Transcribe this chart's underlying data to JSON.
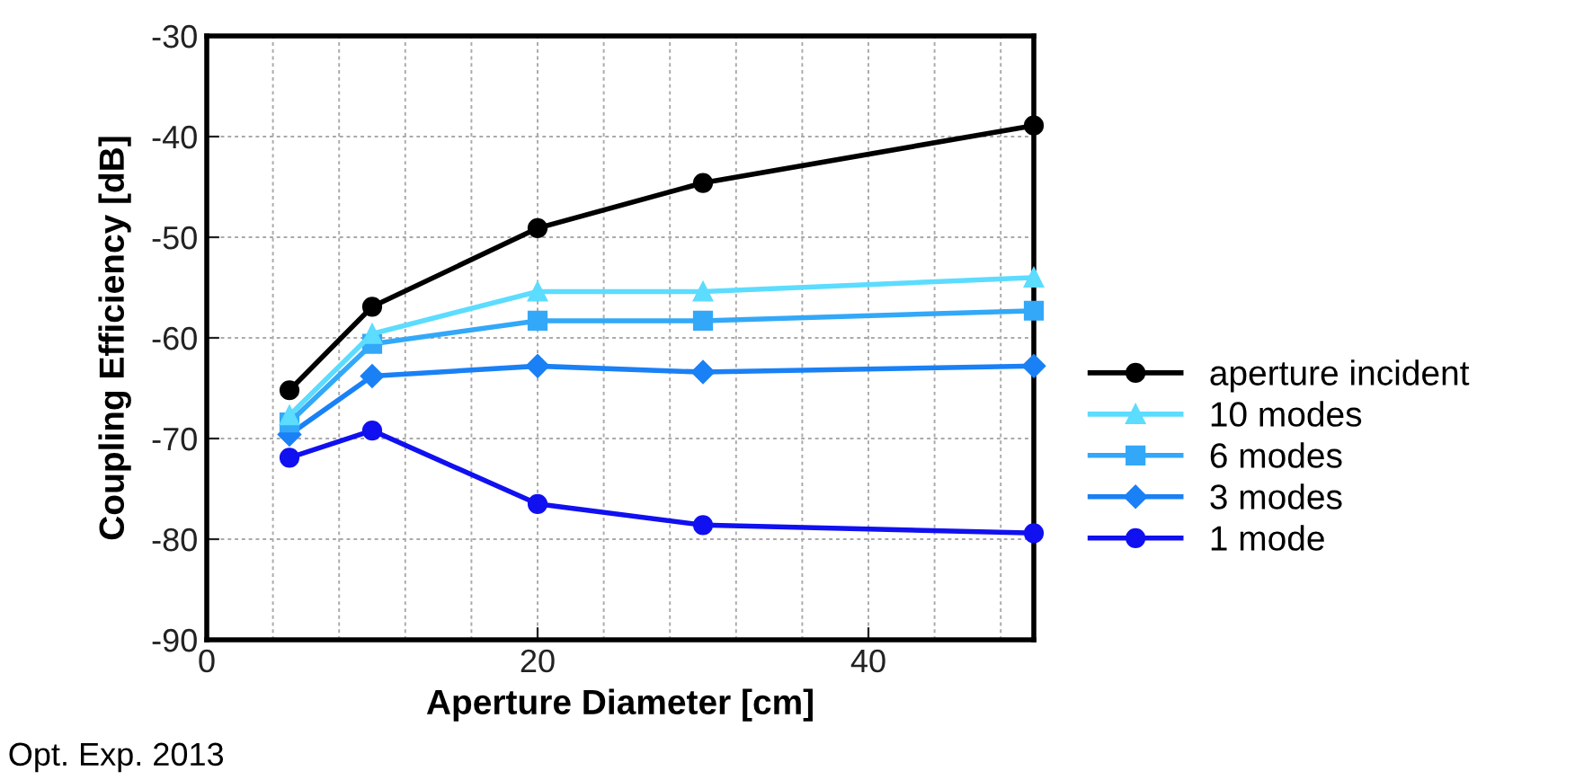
{
  "chart_data": {
    "type": "line",
    "xlabel": "Aperture Diameter [cm]",
    "ylabel": "Coupling Efficiency [dB]",
    "x": [
      5,
      10,
      20,
      30,
      50
    ],
    "series": [
      {
        "name": "aperture incident",
        "color": "#000000",
        "marker": "circle",
        "values": [
          -65.2,
          -56.9,
          -49.1,
          -44.6,
          -38.9
        ]
      },
      {
        "name": "10 modes",
        "color": "#5cdcff",
        "marker": "triangle",
        "values": [
          -67.7,
          -59.6,
          -55.4,
          -55.4,
          -54.0
        ]
      },
      {
        "name": "6 modes",
        "color": "#33a8f8",
        "marker": "square",
        "values": [
          -68.4,
          -60.6,
          -58.3,
          -58.3,
          -57.3
        ]
      },
      {
        "name": "3 modes",
        "color": "#1a80f5",
        "marker": "diamond",
        "values": [
          -69.6,
          -63.8,
          -62.8,
          -63.4,
          -62.8
        ]
      },
      {
        "name": "1 mode",
        "color": "#1010f0",
        "marker": "circle",
        "values": [
          -71.9,
          -69.2,
          -76.5,
          -78.6,
          -79.4
        ]
      }
    ],
    "xlim": [
      0,
      50
    ],
    "xticks": [
      0,
      {
        "value": 4,
        "label": null
      },
      {
        "value": 8,
        "label": null
      },
      {
        "value": 12,
        "label": null
      },
      {
        "value": 16,
        "label": null
      },
      20,
      {
        "value": 24,
        "label": null
      },
      {
        "value": 28,
        "label": null
      },
      {
        "value": 32,
        "label": null
      },
      {
        "value": 36,
        "label": null
      },
      40,
      {
        "value": 44,
        "label": null
      },
      {
        "value": 48,
        "label": null
      }
    ],
    "ylim": [
      -90,
      -30
    ],
    "yticks": [
      -90,
      -80,
      -70,
      -60,
      -50,
      -40,
      -30
    ],
    "grid": true,
    "legend": "right",
    "line_style": "solid",
    "annotations": [
      "Opt. Exp. 2013"
    ]
  }
}
